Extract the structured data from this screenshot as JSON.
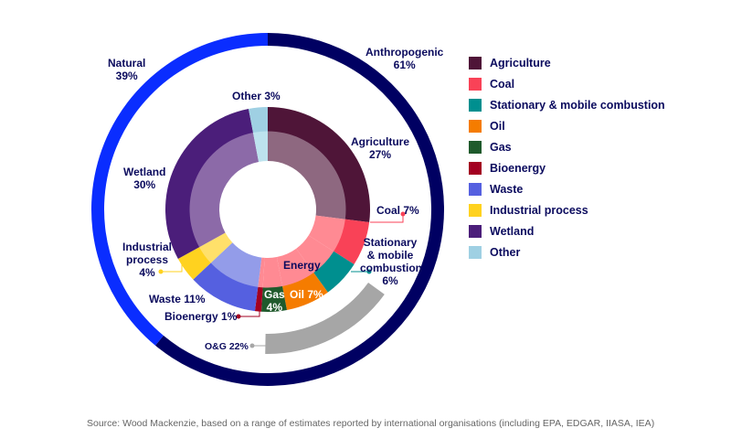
{
  "chart_data": {
    "type": "sunburst-donut",
    "outer_ring": [
      {
        "name": "Anthropogenic",
        "value": 61,
        "label": "Anthropogenic",
        "value_label": "61%",
        "color": "#000062"
      },
      {
        "name": "Natural",
        "value": 39,
        "label": "Natural",
        "value_label": "39%",
        "color": "#0a2dff"
      }
    ],
    "segments": [
      {
        "name": "Agriculture",
        "value": 27,
        "label": "Agriculture",
        "value_label": "27%",
        "color": "#4f1538",
        "inner_color": "#8e6880"
      },
      {
        "name": "Coal",
        "value": 7,
        "label": "Coal 7%",
        "color": "#f94257",
        "inner_color": "#ff8a93"
      },
      {
        "name": "Stationary & mobile combustion",
        "value": 6,
        "label": "Stationary & mobile combustion 6%",
        "color": "#008f8f",
        "inner_color": "#ff8a93"
      },
      {
        "name": "Oil",
        "value": 7,
        "label": "Oil 7%",
        "color": "#f57c00",
        "inner_color": "#ff8a93"
      },
      {
        "name": "Gas",
        "value": 4,
        "label": "Gas",
        "value_label": "4%",
        "color": "#1f5a2c",
        "inner_color": "#ff8a93"
      },
      {
        "name": "Bioenergy",
        "value": 1,
        "label": "Bioenergy 1%",
        "color": "#a30021",
        "inner_color": "#ff8a93"
      },
      {
        "name": "Waste",
        "value": 11,
        "label": "Waste 11%",
        "color": "#5560e0",
        "inner_color": "#939ce9"
      },
      {
        "name": "Industrial process",
        "value": 4,
        "label": "Industrial process",
        "value_label": "4%",
        "color": "#ffd21f",
        "inner_color": "#ffe06a"
      },
      {
        "name": "Wetland",
        "value": 30,
        "label": "Wetland",
        "value_label": "30%",
        "color": "#4b1e7a",
        "inner_color": "#8c6aa8"
      },
      {
        "name": "Other",
        "value": 3,
        "label": "Other 3%",
        "color": "#9fd0e3",
        "inner_color": "#bde3ee"
      }
    ],
    "inner_group_label": "Energy",
    "highlight_arc": {
      "label": "O&G 22%",
      "color": "#a6a6a6"
    },
    "legend": [
      "Agriculture",
      "Coal",
      "Stationary & mobile combustion",
      "Oil",
      "Gas",
      "Bioenergy",
      "Waste",
      "Industrial process",
      "Wetland",
      "Other"
    ],
    "legend_placement": "right",
    "source": "Source: Wood Mackenzie, based on a range of estimates reported by international organisations (including EPA, EDGAR, IIASA, IEA)"
  }
}
